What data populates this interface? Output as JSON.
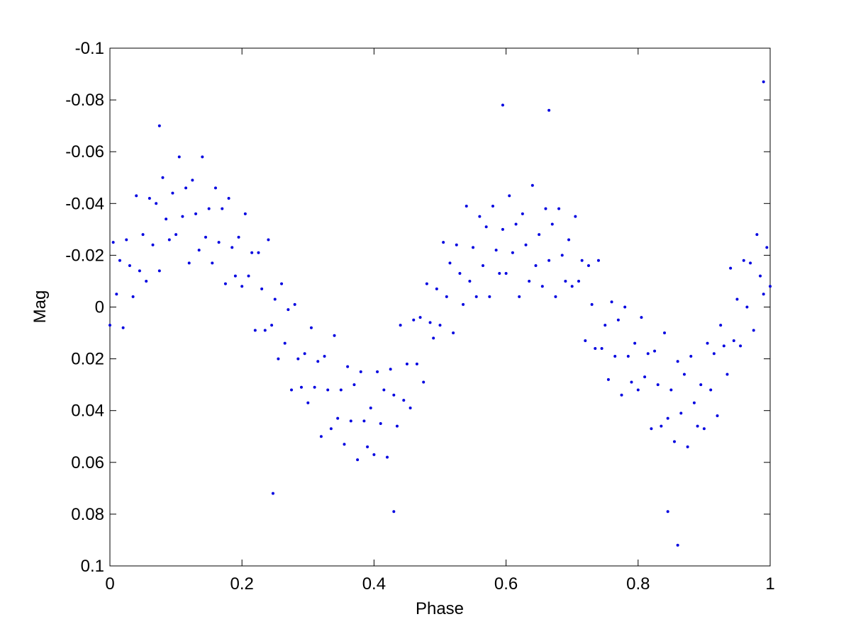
{
  "chart_data": {
    "type": "scatter",
    "x_label": "Phase",
    "y_label": "Mag",
    "xlim": [
      0,
      1
    ],
    "xticks": [
      0,
      0.2,
      0.4,
      0.6,
      0.8,
      1
    ],
    "ylim": [
      0.1,
      -0.1
    ],
    "yticks": [
      -0.1,
      -0.08,
      -0.06,
      -0.04,
      -0.02,
      0,
      0.02,
      0.04,
      0.06,
      0.08,
      0.1
    ],
    "grid": false,
    "series": [
      {
        "color": "#0000e0",
        "x": [
          0,
          0.005,
          0.01,
          0.015,
          0.02,
          0.025,
          0.03,
          0.035,
          0.04,
          0.045,
          0.05,
          0.055,
          0.06,
          0.065,
          0.07,
          0.075,
          0.08,
          0.085,
          0.09,
          0.095,
          0.1,
          0.105,
          0.11,
          0.115,
          0.12,
          0.125,
          0.13,
          0.135,
          0.14,
          0.145,
          0.15,
          0.155,
          0.16,
          0.165,
          0.17,
          0.175,
          0.18,
          0.185,
          0.19,
          0.195,
          0.2,
          0.205,
          0.21,
          0.215,
          0.22,
          0.225,
          0.23,
          0.235,
          0.24,
          0.245,
          0.25,
          0.255,
          0.26,
          0.265,
          0.27,
          0.275,
          0.28,
          0.285,
          0.29,
          0.295,
          0.3,
          0.305,
          0.31,
          0.315,
          0.32,
          0.325,
          0.33,
          0.335,
          0.34,
          0.345,
          0.35,
          0.355,
          0.36,
          0.365,
          0.37,
          0.375,
          0.38,
          0.385,
          0.39,
          0.395,
          0.4,
          0.405,
          0.41,
          0.415,
          0.42,
          0.425,
          0.43,
          0.435,
          0.44,
          0.445,
          0.45,
          0.455,
          0.46,
          0.465,
          0.47,
          0.475,
          0.48,
          0.485,
          0.49,
          0.495,
          0.5,
          0.505,
          0.51,
          0.515,
          0.52,
          0.525,
          0.53,
          0.535,
          0.54,
          0.545,
          0.55,
          0.555,
          0.56,
          0.565,
          0.57,
          0.575,
          0.58,
          0.585,
          0.59,
          0.595,
          0.6,
          0.605,
          0.61,
          0.615,
          0.62,
          0.625,
          0.63,
          0.635,
          0.64,
          0.645,
          0.65,
          0.655,
          0.66,
          0.665,
          0.67,
          0.675,
          0.68,
          0.685,
          0.69,
          0.695,
          0.7,
          0.705,
          0.71,
          0.715,
          0.72,
          0.725,
          0.73,
          0.735,
          0.74,
          0.745,
          0.75,
          0.755,
          0.76,
          0.765,
          0.77,
          0.775,
          0.78,
          0.785,
          0.79,
          0.795,
          0.8,
          0.805,
          0.81,
          0.815,
          0.82,
          0.825,
          0.83,
          0.835,
          0.84,
          0.845,
          0.85,
          0.855,
          0.86,
          0.865,
          0.87,
          0.875,
          0.88,
          0.885,
          0.89,
          0.895,
          0.9,
          0.905,
          0.91,
          0.915,
          0.92,
          0.925,
          0.93,
          0.935,
          0.94,
          0.945,
          0.95,
          0.955,
          0.96,
          0.965,
          0.97,
          0.975,
          0.98,
          0.985,
          0.99,
          0.995,
          1,
          0.075,
          0.247,
          0.43,
          0.595,
          0.665,
          0.86,
          0.99,
          0.845
        ],
        "values": [
          0.007,
          -0.025,
          -0.005,
          -0.018,
          0.008,
          -0.026,
          -0.016,
          -0.004,
          -0.043,
          -0.014,
          -0.028,
          -0.01,
          -0.042,
          -0.024,
          -0.04,
          -0.014,
          -0.05,
          -0.034,
          -0.026,
          -0.044,
          -0.028,
          -0.058,
          -0.035,
          -0.046,
          -0.017,
          -0.049,
          -0.036,
          -0.022,
          -0.058,
          -0.027,
          -0.038,
          -0.017,
          -0.046,
          -0.025,
          -0.038,
          -0.009,
          -0.042,
          -0.023,
          -0.012,
          -0.027,
          -0.008,
          -0.036,
          -0.012,
          -0.021,
          0.009,
          -0.021,
          -0.007,
          0.009,
          -0.026,
          0.007,
          -0.003,
          0.02,
          -0.009,
          0.014,
          0.001,
          0.032,
          -0.001,
          0.02,
          0.031,
          0.018,
          0.037,
          0.008,
          0.031,
          0.021,
          0.05,
          0.019,
          0.032,
          0.047,
          0.011,
          0.043,
          0.032,
          0.053,
          0.023,
          0.044,
          0.03,
          0.059,
          0.025,
          0.044,
          0.054,
          0.039,
          0.057,
          0.025,
          0.045,
          0.032,
          0.058,
          0.024,
          0.034,
          0.046,
          0.007,
          0.036,
          0.022,
          0.039,
          0.005,
          0.022,
          0.004,
          0.029,
          -0.009,
          0.006,
          0.012,
          -0.007,
          0.007,
          -0.025,
          -0.004,
          -0.017,
          0.01,
          -0.024,
          -0.013,
          -0.001,
          -0.039,
          -0.01,
          -0.023,
          -0.004,
          -0.035,
          -0.016,
          -0.031,
          -0.004,
          -0.039,
          -0.022,
          -0.013,
          -0.03,
          -0.013,
          -0.043,
          -0.021,
          -0.032,
          -0.004,
          -0.036,
          -0.024,
          -0.01,
          -0.047,
          -0.016,
          -0.028,
          -0.008,
          -0.038,
          -0.018,
          -0.032,
          -0.004,
          -0.038,
          -0.02,
          -0.01,
          -0.026,
          -0.008,
          -0.035,
          -0.01,
          -0.018,
          0.013,
          -0.016,
          -0.001,
          0.016,
          -0.018,
          0.016,
          0.007,
          0.028,
          -0.002,
          0.019,
          0.005,
          0.034,
          0.0,
          0.019,
          0.029,
          0.014,
          0.032,
          0.004,
          0.027,
          0.018,
          0.047,
          0.017,
          0.03,
          0.046,
          0.01,
          0.043,
          0.032,
          0.052,
          0.021,
          0.041,
          0.026,
          0.054,
          0.019,
          0.037,
          0.046,
          0.03,
          0.047,
          0.014,
          0.032,
          0.018,
          0.042,
          0.007,
          0.015,
          0.026,
          -0.015,
          0.013,
          -0.003,
          0.015,
          -0.018,
          0.0,
          -0.017,
          0.009,
          -0.028,
          -0.012,
          -0.005,
          -0.023,
          -0.008,
          -0.07,
          0.072,
          0.079,
          -0.078,
          -0.076,
          0.092,
          -0.087,
          0.079
        ]
      }
    ]
  }
}
